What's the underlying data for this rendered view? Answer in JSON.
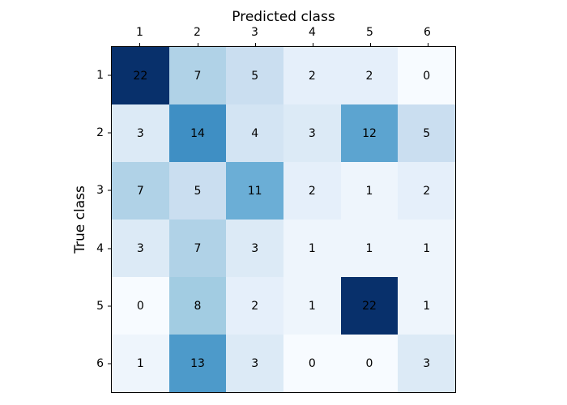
{
  "figure": {
    "background": "#ffffff",
    "axes_border_color": "#000000",
    "tick_color": "#000000",
    "text_color": "#000000"
  },
  "chart_data": {
    "type": "heatmap",
    "title": "Predicted class",
    "ylabel": "True class",
    "xlabel": "",
    "colormap": "Blues",
    "vmin": 0,
    "vmax": 22,
    "grid": false,
    "x_tick_labels": [
      "1",
      "2",
      "3",
      "4",
      "5",
      "6"
    ],
    "y_tick_labels": [
      "1",
      "2",
      "3",
      "4",
      "5",
      "6"
    ],
    "matrix": [
      [
        22,
        7,
        5,
        2,
        2,
        0
      ],
      [
        3,
        14,
        4,
        3,
        12,
        5
      ],
      [
        7,
        5,
        11,
        2,
        1,
        2
      ],
      [
        3,
        7,
        3,
        1,
        1,
        1
      ],
      [
        0,
        8,
        2,
        1,
        22,
        1
      ],
      [
        1,
        13,
        3,
        0,
        0,
        3
      ]
    ],
    "cell_colors": [
      [
        "#08306b",
        "#b0d2e7",
        "#cadef0",
        "#e5effa",
        "#e5effa",
        "#f7fbff"
      ],
      [
        "#dceaf6",
        "#3f8fc4",
        "#d3e4f3",
        "#dceaf6",
        "#5ca4d0",
        "#cadef0"
      ],
      [
        "#b0d2e7",
        "#cadef0",
        "#6baed6",
        "#e5effa",
        "#eef5fc",
        "#e5effa"
      ],
      [
        "#dceaf6",
        "#b0d2e7",
        "#dceaf6",
        "#eef5fc",
        "#eef5fc",
        "#eef5fc"
      ],
      [
        "#f7fbff",
        "#a2cce2",
        "#e5effa",
        "#eef5fc",
        "#08306b",
        "#eef5fc"
      ],
      [
        "#eef5fc",
        "#4d9aca",
        "#dceaf6",
        "#f7fbff",
        "#f7fbff",
        "#dceaf6"
      ]
    ],
    "value_text_color": "#000000"
  }
}
